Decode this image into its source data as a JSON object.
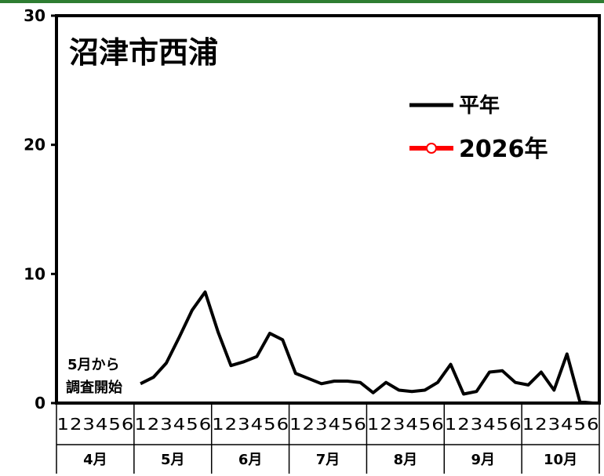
{
  "chart_data": {
    "type": "line",
    "title": "沼津市西浦",
    "ylim": [
      0,
      30
    ],
    "y_ticks": [
      "0",
      "10",
      "20",
      "30"
    ],
    "grid": false,
    "legend_position": "top-right",
    "x_period_labels": [
      "1",
      "2",
      "3",
      "4",
      "5",
      "6"
    ],
    "months": [
      "4月",
      "5月",
      "6月",
      "7月",
      "8月",
      "9月",
      "10月"
    ],
    "annotation": [
      "5月から",
      "調査開始"
    ],
    "series": [
      {
        "name": "平年",
        "color": "#000000",
        "values": [
          null,
          null,
          null,
          null,
          null,
          null,
          1.5,
          2.0,
          3.1,
          5.1,
          7.2,
          8.6,
          5.5,
          2.9,
          3.2,
          3.6,
          5.4,
          4.9,
          2.3,
          1.9,
          1.5,
          1.7,
          1.7,
          1.6,
          0.8,
          1.6,
          1.0,
          0.9,
          1.0,
          1.6,
          3.0,
          0.7,
          0.9,
          2.4,
          2.5,
          1.6,
          1.4,
          2.4,
          1.0,
          3.8,
          0.1,
          0.0
        ]
      },
      {
        "name": "2026年",
        "color": "#ff0000",
        "marker_fill": "#ffffff",
        "values": []
      }
    ]
  }
}
